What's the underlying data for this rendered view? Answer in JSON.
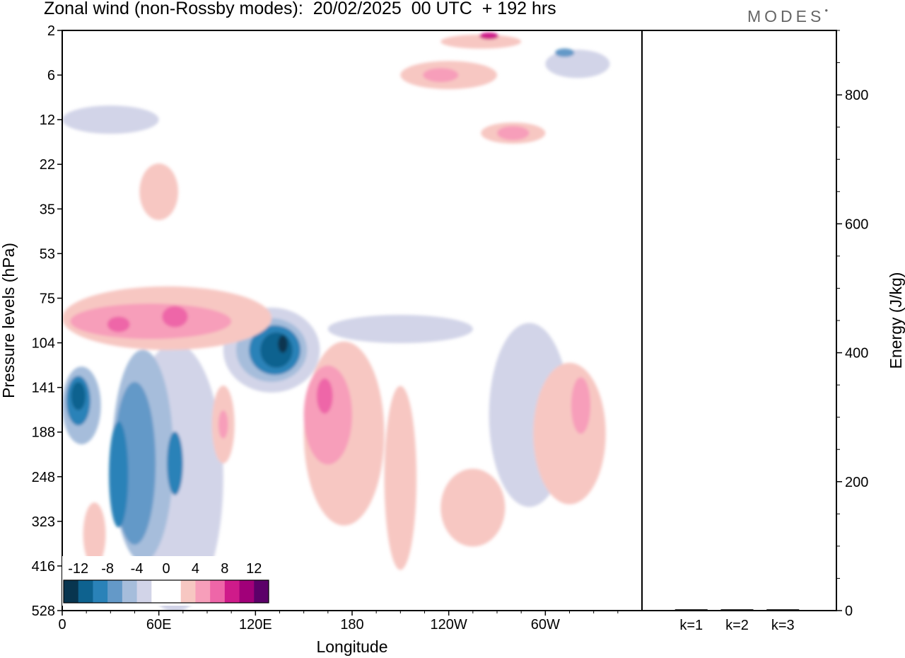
{
  "figure": {
    "title": "Zonal wind (non-Rossby modes):  20/02/2025  00 UTC  + 192 hrs",
    "brand": "MODES"
  },
  "chart_data": [
    {
      "type": "heatmap",
      "title": "Zonal wind (non-Rossby modes):  20/02/2025  00 UTC  + 192 hrs",
      "xlabel": "Longitude",
      "ylabel": "Pressure levels (hPa)",
      "x_ticks": [
        "0",
        "60E",
        "120E",
        "180",
        "120W",
        "60W"
      ],
      "y_ticks": [
        "2",
        "6",
        "12",
        "22",
        "35",
        "53",
        "75",
        "104",
        "141",
        "188",
        "248",
        "323",
        "416",
        "528"
      ],
      "colorbar": {
        "labels": [
          "-12",
          "-8",
          "-4",
          "0",
          "4",
          "8",
          "12"
        ],
        "colors": [
          "#08354f",
          "#0e628f",
          "#2a82b8",
          "#6499c8",
          "#a6bddb",
          "#d2d4e8",
          "#ffffff",
          "#ffffff",
          "#f7c7c2",
          "#f79eba",
          "#ee66a8",
          "#cf1b8a",
          "#a10079",
          "#5c0069"
        ]
      },
      "grid": false,
      "contours": [
        {
          "level": -2,
          "color": "#d2d4e8",
          "lon": 70,
          "p": 250,
          "w": 60,
          "h": 380
        },
        {
          "level": -4,
          "color": "#a6bddb",
          "lon": 50,
          "p": 220,
          "w": 38,
          "h": 300
        },
        {
          "level": -6,
          "color": "#6499c8",
          "lon": 45,
          "p": 230,
          "w": 26,
          "h": 230
        },
        {
          "level": -8,
          "color": "#2a82b8",
          "lon": 35,
          "p": 245,
          "w": 12,
          "h": 150
        },
        {
          "level": -8,
          "color": "#2a82b8",
          "lon": 70,
          "p": 230,
          "w": 10,
          "h": 90
        },
        {
          "level": -4,
          "color": "#a6bddb",
          "lon": 12,
          "p": 160,
          "w": 24,
          "h": 110
        },
        {
          "level": -8,
          "color": "#2a82b8",
          "lon": 10,
          "p": 155,
          "w": 15,
          "h": 70
        },
        {
          "level": -10,
          "color": "#0e628f",
          "lon": 10,
          "p": 150,
          "w": 9,
          "h": 40
        },
        {
          "level": -2,
          "color": "#d2d4e8",
          "lon": 130,
          "p": 110,
          "w": 60,
          "h": 120
        },
        {
          "level": -4,
          "color": "#a6bddb",
          "lon": 130,
          "p": 110,
          "w": 44,
          "h": 90
        },
        {
          "level": -8,
          "color": "#2a82b8",
          "lon": 132,
          "p": 110,
          "w": 32,
          "h": 70
        },
        {
          "level": -10,
          "color": "#0e628f",
          "lon": 133,
          "p": 110,
          "w": 20,
          "h": 50
        },
        {
          "level": -12,
          "color": "#08354f",
          "lon": 137,
          "p": 105,
          "w": 6,
          "h": 25
        },
        {
          "level": -2,
          "color": "#d2d4e8",
          "lon": 210,
          "p": 95,
          "w": 90,
          "h": 40
        },
        {
          "level": -2,
          "color": "#d2d4e8",
          "lon": 290,
          "p": 170,
          "w": 50,
          "h": 260
        },
        {
          "level": -2,
          "color": "#d2d4e8",
          "lon": 30,
          "p": 12,
          "w": 60,
          "h": 40
        },
        {
          "level": -2,
          "color": "#d2d4e8",
          "lon": 320,
          "p": 5,
          "w": 40,
          "h": 40
        },
        {
          "level": -6,
          "color": "#6499c8",
          "lon": 312,
          "p": 4,
          "w": 12,
          "h": 12
        },
        {
          "level": 2,
          "color": "#f7c7c2",
          "lon": 65,
          "p": 88,
          "w": 130,
          "h": 90
        },
        {
          "level": 4,
          "color": "#f79eba",
          "lon": 55,
          "p": 90,
          "w": 100,
          "h": 50
        },
        {
          "level": 6,
          "color": "#ee66a8",
          "lon": 35,
          "p": 92,
          "w": 14,
          "h": 22
        },
        {
          "level": 6,
          "color": "#ee66a8",
          "lon": 70,
          "p": 87,
          "w": 16,
          "h": 30
        },
        {
          "level": 2,
          "color": "#f7c7c2",
          "lon": 60,
          "p": 30,
          "w": 24,
          "h": 80
        },
        {
          "level": 2,
          "color": "#f7c7c2",
          "lon": 175,
          "p": 190,
          "w": 50,
          "h": 260
        },
        {
          "level": 4,
          "color": "#f79eba",
          "lon": 165,
          "p": 170,
          "w": 30,
          "h": 140
        },
        {
          "level": 6,
          "color": "#ee66a8",
          "lon": 163,
          "p": 150,
          "w": 10,
          "h": 50
        },
        {
          "level": 2,
          "color": "#f7c7c2",
          "lon": 210,
          "p": 250,
          "w": 20,
          "h": 260
        },
        {
          "level": 2,
          "color": "#f7c7c2",
          "lon": 255,
          "p": 300,
          "w": 40,
          "h": 110
        },
        {
          "level": 2,
          "color": "#f7c7c2",
          "lon": 315,
          "p": 190,
          "w": 45,
          "h": 200
        },
        {
          "level": 4,
          "color": "#f79eba",
          "lon": 322,
          "p": 160,
          "w": 12,
          "h": 80
        },
        {
          "level": 2,
          "color": "#f7c7c2",
          "lon": 100,
          "p": 180,
          "w": 14,
          "h": 110
        },
        {
          "level": 4,
          "color": "#f79eba",
          "lon": 100,
          "p": 180,
          "w": 6,
          "h": 40
        },
        {
          "level": 2,
          "color": "#f7c7c2",
          "lon": 240,
          "p": 6,
          "w": 60,
          "h": 40
        },
        {
          "level": 4,
          "color": "#f79eba",
          "lon": 235,
          "p": 6,
          "w": 22,
          "h": 20
        },
        {
          "level": 2,
          "color": "#f7c7c2",
          "lon": 280,
          "p": 15,
          "w": 40,
          "h": 30
        },
        {
          "level": 4,
          "color": "#f79eba",
          "lon": 280,
          "p": 15,
          "w": 20,
          "h": 20
        },
        {
          "level": 2,
          "color": "#f7c7c2",
          "lon": 260,
          "p": 3,
          "w": 50,
          "h": 20
        },
        {
          "level": 8,
          "color": "#cf1b8a",
          "lon": 265,
          "p": 2.5,
          "w": 12,
          "h": 10
        },
        {
          "level": 2,
          "color": "#f7c7c2",
          "lon": 20,
          "p": 350,
          "w": 14,
          "h": 90
        }
      ]
    },
    {
      "type": "bar",
      "categories": [
        "k=1",
        "k=2",
        "k=3"
      ],
      "values": [
        2,
        2,
        2
      ],
      "ylabel": "Energy (J/kg)",
      "y_ticks": [
        "0",
        "200",
        "400",
        "600",
        "800"
      ],
      "ylim": [
        0,
        900
      ]
    }
  ]
}
